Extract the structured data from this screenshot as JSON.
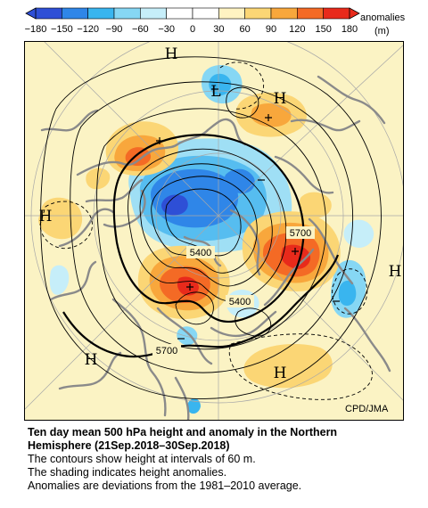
{
  "colorbar": {
    "ticks": [
      "−180",
      "−150",
      "−120",
      "−90",
      "−60",
      "−30",
      "0",
      "30",
      "60",
      "90",
      "120",
      "150",
      "180"
    ],
    "unit_label": "anomalies",
    "unit": "(m)",
    "colors": [
      "#2e4fd6",
      "#2f86e8",
      "#39b5ef",
      "#86d7f4",
      "#c6eef9",
      "#ffffff",
      "#ffffff",
      "#fff3c2",
      "#fbd675",
      "#f8a73c",
      "#f46a25",
      "#e82a1b"
    ]
  },
  "map": {
    "labels": {
      "h": [
        "H",
        "H",
        "H",
        "H",
        "H",
        "H"
      ],
      "l": [
        "L"
      ],
      "contours": [
        "5400",
        "5400",
        "5700",
        "5700"
      ],
      "credit": "CPD/JMA"
    },
    "colors": {
      "land_outline": "#8a8a8a",
      "background": "#fbf3c4",
      "latlon": "#9a9a9a"
    }
  },
  "caption": {
    "title_line1": "Ten day mean 500 hPa height and anomaly in the Northern",
    "title_line2": "Hemisphere (21Sep.2018–30Sep.2018)",
    "line1": "The contours show height at intervals of 60 m.",
    "line2": "The shading indicates height anomalies.",
    "line3": "Anomalies are deviations from the 1981–2010 average."
  }
}
